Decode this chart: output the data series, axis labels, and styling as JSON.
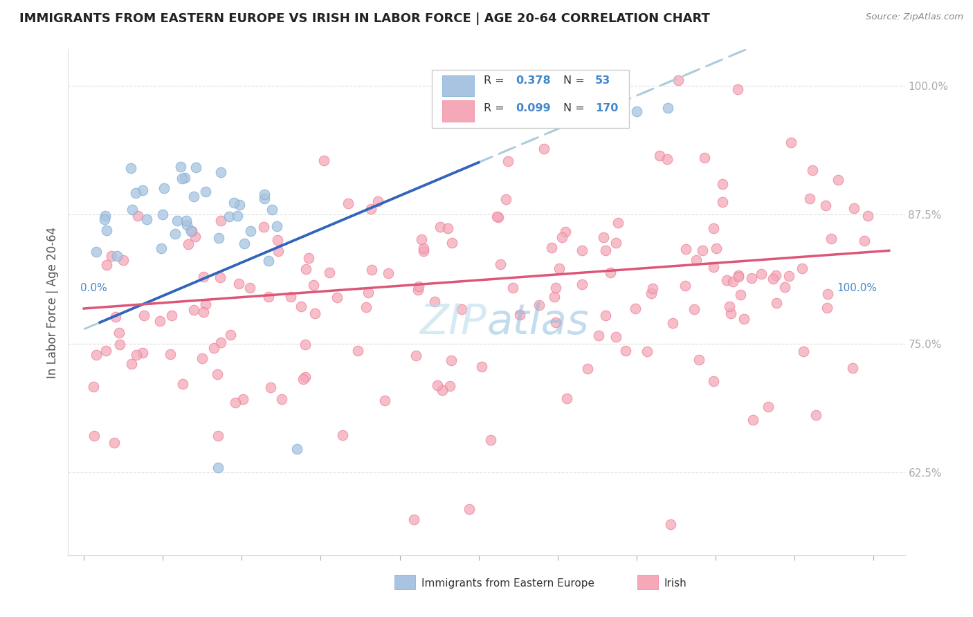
{
  "title": "IMMIGRANTS FROM EASTERN EUROPE VS IRISH IN LABOR FORCE | AGE 20-64 CORRELATION CHART",
  "source": "Source: ZipAtlas.com",
  "ylabel": "In Labor Force | Age 20-64",
  "blue_color": "#A8C4E0",
  "blue_edge_color": "#7BADD4",
  "pink_color": "#F4A8B8",
  "pink_edge_color": "#EE8099",
  "blue_line_color": "#3366BB",
  "pink_line_color": "#DD5577",
  "dashed_line_color": "#AACCDD",
  "watermark_color": "#BBDDEE",
  "background_color": "#FFFFFF",
  "grid_color": "#DDDDDD",
  "ytick_color": "#4488CC",
  "xtick_label_color": "#4488CC",
  "legend_blue_fill": "#A8C4E0",
  "legend_pink_fill": "#F4A8B8",
  "title_color": "#222222",
  "source_color": "#888888",
  "ylabel_color": "#555555"
}
